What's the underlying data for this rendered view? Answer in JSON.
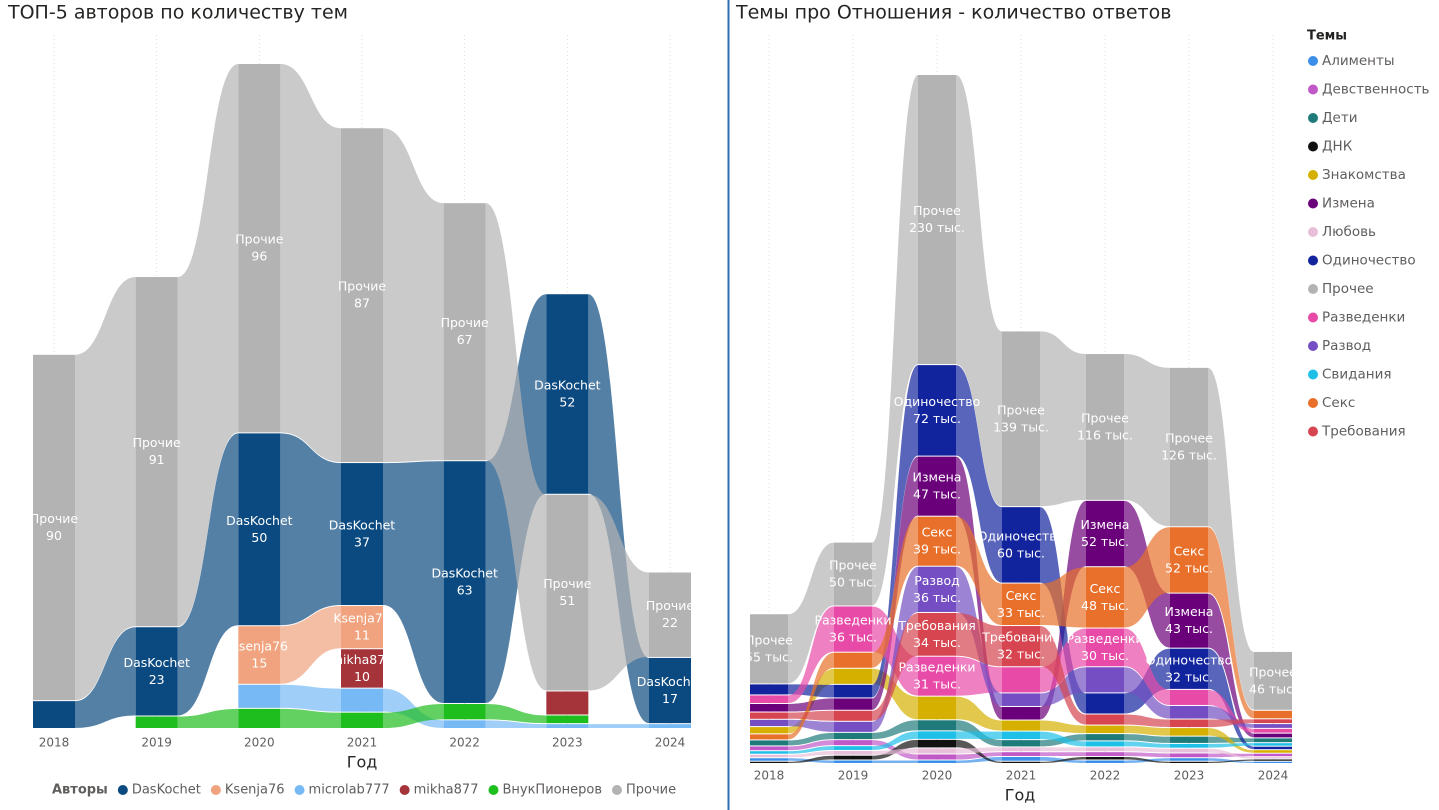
{
  "chart_data": [
    {
      "type": "ribbon",
      "title": "ТОП-5 авторов по количеству тем",
      "x_label": "Год",
      "legend_title": "Авторы",
      "legend_position": "bottom",
      "categories": [
        "2018",
        "2019",
        "2020",
        "2021",
        "2022",
        "2023",
        "2024"
      ],
      "series": [
        {
          "name": "DasKochet",
          "color": "#0b4a80",
          "values": [
            7,
            23,
            50,
            37,
            63,
            52,
            17
          ]
        },
        {
          "name": "Ksenja76",
          "color": "#f0a37e",
          "values": [
            null,
            null,
            15,
            11,
            null,
            null,
            null
          ]
        },
        {
          "name": "microlab777",
          "color": "#76b9f5",
          "values": [
            null,
            null,
            6,
            6,
            2,
            1,
            1
          ]
        },
        {
          "name": "mikha877",
          "color": "#a4343a",
          "values": [
            null,
            null,
            null,
            10,
            null,
            6,
            null
          ]
        },
        {
          "name": "ВнукПионеров",
          "color": "#1fbe1f",
          "values": [
            null,
            3,
            5,
            4,
            4,
            2,
            null
          ]
        },
        {
          "name": "Прочие",
          "color": "#b3b3b3",
          "values": [
            90,
            91,
            96,
            87,
            67,
            51,
            22
          ]
        }
      ]
    },
    {
      "type": "ribbon",
      "title": "Темы про Отношения - количество ответов",
      "x_label": "Год",
      "legend_title": "Темы",
      "legend_position": "right",
      "categories": [
        "2018",
        "2019",
        "2020",
        "2021",
        "2022",
        "2023",
        "2024"
      ],
      "series": [
        {
          "name": "Алименты",
          "color": "#3b8fe8",
          "values": [
            2,
            2,
            2,
            3,
            2,
            2,
            1
          ]
        },
        {
          "name": "Девственность",
          "color": "#c058c8",
          "values": [
            3,
            4,
            4,
            3,
            3,
            3,
            2
          ]
        },
        {
          "name": "Дети",
          "color": "#1f7a7a",
          "values": [
            4,
            5,
            8,
            5,
            5,
            5,
            3
          ]
        },
        {
          "name": "ДНК",
          "color": "#111111",
          "values": [
            1,
            3,
            6,
            1,
            2,
            1,
            1
          ]
        },
        {
          "name": "Знакомства",
          "color": "#d6b000",
          "values": [
            5,
            12,
            18,
            8,
            6,
            6,
            2
          ]
        },
        {
          "name": "Измена",
          "color": "#6b007b",
          "values": [
            6,
            9,
            47,
            10,
            52,
            43,
            3
          ],
          "value_labels": [
            null,
            null,
            "47 тыс.",
            null,
            "52 тыс.",
            "43 тыс.",
            null
          ]
        },
        {
          "name": "Любовь",
          "color": "#e8bfd9",
          "values": [
            2,
            3,
            4,
            3,
            3,
            3,
            1
          ]
        },
        {
          "name": "Одиночество",
          "color": "#12239e",
          "values": [
            8,
            10,
            72,
            60,
            16,
            32,
            2
          ],
          "value_labels": [
            null,
            null,
            "72 тыс.",
            "60 тыс.",
            null,
            "32 тыс.",
            null
          ]
        },
        {
          "name": "Прочее",
          "color": "#b3b3b3",
          "values": [
            55,
            50,
            230,
            139,
            116,
            126,
            46
          ],
          "value_labels": [
            "55 тыс.",
            "50 тыс.",
            "230 тыс.",
            "139 тыс.",
            "116 тыс.",
            "126 тыс.",
            "46 тыс."
          ]
        },
        {
          "name": "Разведенки",
          "color": "#e84aa8",
          "values": [
            6,
            36,
            31,
            20,
            30,
            12,
            3
          ],
          "value_labels": [
            null,
            "36 тыс.",
            "31 тыс.",
            null,
            "30 тыс.",
            null,
            null
          ]
        },
        {
          "name": "Развод",
          "color": "#744ec2",
          "values": [
            5,
            8,
            36,
            10,
            20,
            10,
            3
          ],
          "value_labels": [
            null,
            null,
            "36 тыс.",
            null,
            null,
            null,
            null
          ]
        },
        {
          "name": "Свидания",
          "color": "#1ec0e8",
          "values": [
            2,
            3,
            6,
            6,
            4,
            3,
            2
          ]
        },
        {
          "name": "Секс",
          "color": "#e8702a",
          "values": [
            4,
            12,
            39,
            33,
            48,
            52,
            6
          ],
          "value_labels": [
            null,
            null,
            "39 тыс.",
            "33 тыс.",
            "48 тыс.",
            "52 тыс.",
            null
          ]
        },
        {
          "name": "Требования",
          "color": "#d64550",
          "values": [
            5,
            8,
            34,
            32,
            8,
            6,
            3
          ],
          "value_labels": [
            null,
            null,
            "34 тыс.",
            "32 тыс.",
            null,
            null,
            null
          ]
        }
      ]
    }
  ]
}
